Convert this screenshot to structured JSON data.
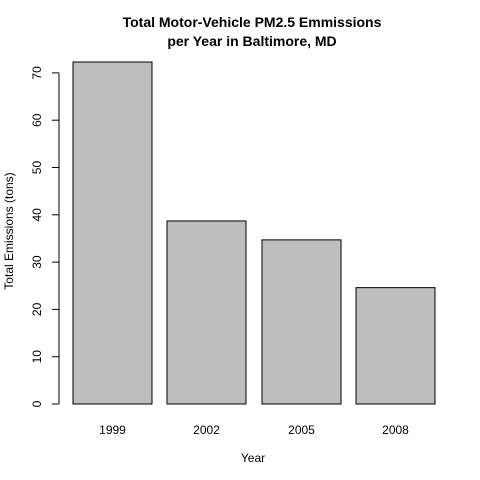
{
  "chart_data": {
    "type": "bar",
    "title": [
      "Total Motor-Vehicle PM2.5 Emmissions",
      "per Year in Baltimore, MD"
    ],
    "xlabel": "Year",
    "ylabel": "Total Emissions (tons)",
    "categories": [
      "1999",
      "2002",
      "2005",
      "2008"
    ],
    "values": [
      72.3,
      38.7,
      34.7,
      24.6
    ],
    "ylim": [
      0,
      76
    ],
    "yticks": [
      "0",
      "10",
      "20",
      "30",
      "40",
      "50",
      "60",
      "70"
    ],
    "bar_color": "#bebebe",
    "grid": false,
    "legend": "none"
  }
}
